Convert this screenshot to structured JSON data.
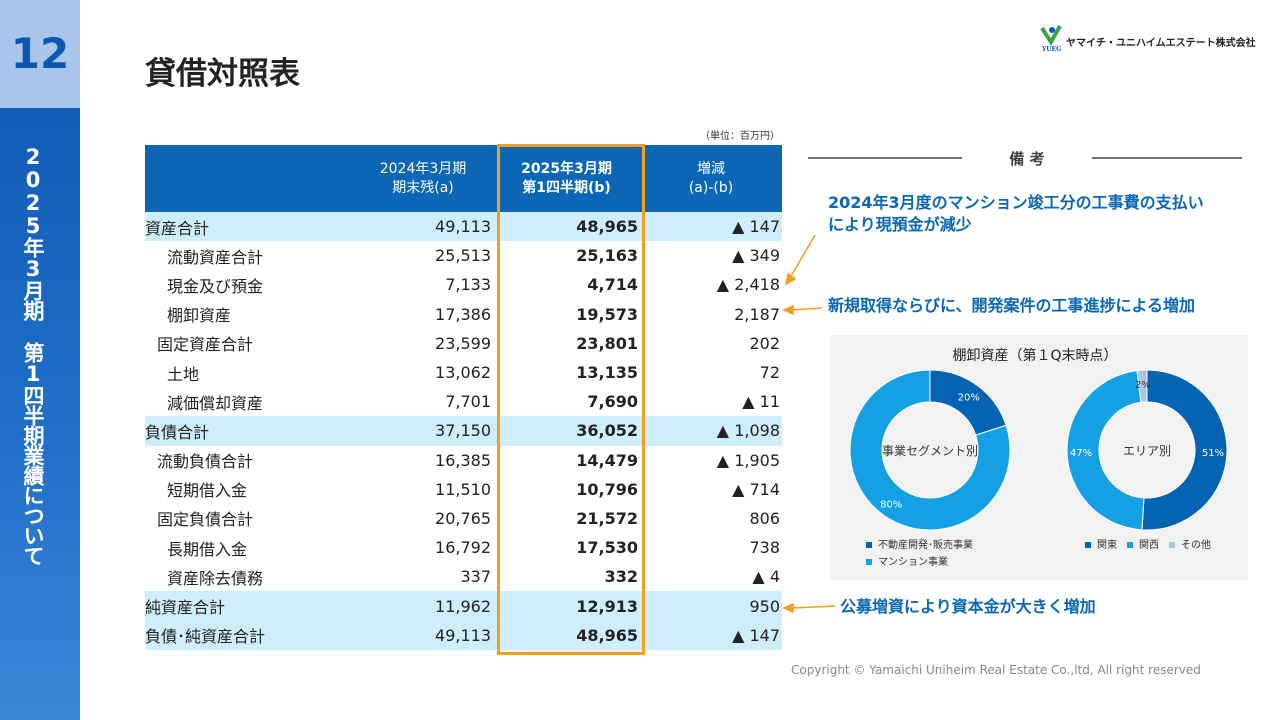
{
  "sidebar": {
    "page": "12",
    "section_a": "2025年3月期",
    "section_b": "第1四半期業績について"
  },
  "header": {
    "title": "貸借対照表",
    "company": "ヤマイチ・ユニハイムエステート株式会社",
    "mark": "YUEG"
  },
  "table": {
    "unit": "（単位：百万円）",
    "columns": [
      [
        "2024年3月期",
        "期末残(a)"
      ],
      [
        "2025年3月期",
        "第1四半期(b)"
      ],
      [
        "増減",
        "(a)-(b)"
      ]
    ],
    "rows": [
      [
        "資産合計",
        "49,113",
        "48,965",
        "▲ 147"
      ],
      [
        "流動資産合計",
        "25,513",
        "25,163",
        "▲ 349"
      ],
      [
        "現金及び預金",
        "7,133",
        "4,714",
        "▲ 2,418"
      ],
      [
        "棚卸資産",
        "17,386",
        "19,573",
        "2,187"
      ],
      [
        "固定資産合計",
        "23,599",
        "23,801",
        "202"
      ],
      [
        "土地",
        "13,062",
        "13,135",
        "72"
      ],
      [
        "減価償却資産",
        "7,701",
        "7,690",
        "▲ 11"
      ],
      [
        "負債合計",
        "37,150",
        "36,052",
        "▲ 1,098"
      ],
      [
        "流動負債合計",
        "16,385",
        "14,479",
        "▲ 1,905"
      ],
      [
        "短期借入金",
        "11,510",
        "10,796",
        "▲ 714"
      ],
      [
        "固定負債合計",
        "20,765",
        "21,572",
        "806"
      ],
      [
        "長期借入金",
        "16,792",
        "17,530",
        "738"
      ],
      [
        "資産除去債務",
        "337",
        "332",
        "▲ 4"
      ],
      [
        "純資産合計",
        "11,962",
        "12,913",
        "950"
      ],
      [
        "負債･純資産合計",
        "49,113",
        "48,965",
        "▲ 147"
      ]
    ]
  },
  "remarks": {
    "title": "備 考",
    "notes": [
      [
        "2024年3月度のマンション竣工分の工事費の支払い",
        "により現預金が減少"
      ],
      [
        "新規取得ならびに、開発案件の工事進捗による増加"
      ],
      [
        "公募増資により資本金が大きく増加"
      ]
    ]
  },
  "inventory": {
    "title": "棚卸資産（第１Q末時点）",
    "charts": [
      {
        "type": "pie",
        "center_label": "事業セグメント別",
        "categories": [
          "不動産開発･販売事業",
          "マンション事業"
        ],
        "values": [
          20,
          80
        ],
        "value_labels": [
          "20%",
          "80%"
        ],
        "colors": [
          "#0563b4",
          "#15a0e3"
        ]
      },
      {
        "type": "pie",
        "center_label": "エリア別",
        "categories": [
          "関東",
          "関西",
          "その他"
        ],
        "values": [
          51,
          47,
          2
        ],
        "value_labels": [
          "51%",
          "47%",
          "2%"
        ],
        "colors": [
          "#0563b4",
          "#15a0e3",
          "#a9c6ea"
        ]
      }
    ]
  },
  "copyright": "Copyright © Yamaichi Uniheim Real Estate Co.,ltd, All right reserved"
}
